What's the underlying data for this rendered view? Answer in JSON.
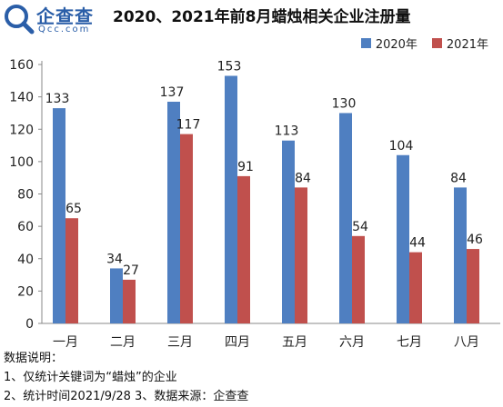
{
  "header": {
    "logo_text": "企查查",
    "logo_sub": "Qcc.com",
    "title": "2020、2021年前8月蜡烛相关企业注册量"
  },
  "colors": {
    "series_2020": "#4f7fc1",
    "series_2021": "#c0504d",
    "axis": "#888888"
  },
  "chart_data": {
    "type": "bar",
    "title": "2020、2021年前8月蜡烛相关企业注册量",
    "categories": [
      "一月",
      "二月",
      "三月",
      "四月",
      "五月",
      "六月",
      "七月",
      "八月"
    ],
    "series": [
      {
        "name": "2020年",
        "values": [
          133,
          34,
          137,
          153,
          113,
          130,
          104,
          84
        ]
      },
      {
        "name": "2021年",
        "values": [
          65,
          27,
          117,
          91,
          84,
          54,
          44,
          46
        ]
      }
    ],
    "yticks": [
      0,
      20,
      40,
      60,
      80,
      100,
      120,
      140,
      160
    ],
    "ylim": [
      0,
      160
    ],
    "xlabel": "",
    "ylabel": "",
    "grid": false,
    "legend_position": "top-right"
  },
  "notes": {
    "heading": "数据说明：",
    "line1": "1、仅统计关键词为“蜡烛”的企业",
    "line2": "2、统计时间2021/9/28  3、数据来源：企查查"
  }
}
